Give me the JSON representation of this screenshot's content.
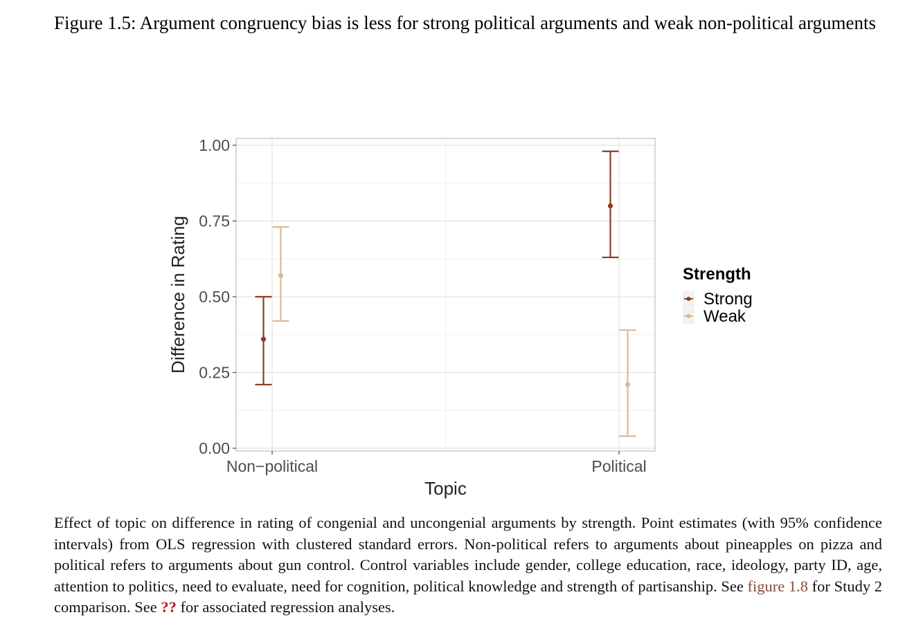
{
  "figure_title": "Figure 1.5:  Argument congruency bias is less for strong political arguments and weak non-political arguments",
  "caption": {
    "text_before_link": "Effect of topic on difference in rating of congenial and uncongenial arguments by strength. Point estimates (with 95% confidence intervals) from OLS regression with clustered standard errors. Non-political refers to arguments about pineapples on pizza and political refers to arguments about gun control. Control variables include gender, college education, race, ideology, party ID, age, attention to politics, need to evaluate, need for cognition, political knowledge and strength of partisanship. See ",
    "link_text": "figure 1.8",
    "text_middle": " for Study 2 comparison. See ",
    "ref_missing": "??",
    "text_after": " for associated regression analyses."
  },
  "chart_data": {
    "type": "scatter",
    "subtype": "point-errorbar",
    "categories": [
      "Non−political",
      "Political"
    ],
    "xlabel": "Topic",
    "ylabel": "Difference in Rating",
    "ylim": [
      0,
      1
    ],
    "yticks": [
      "0.00",
      "0.25",
      "0.50",
      "0.75",
      "1.00"
    ],
    "yticks_values": [
      0,
      0.25,
      0.5,
      0.75,
      1.0
    ],
    "grid": true,
    "legend": {
      "title": "Strength",
      "placement": "right"
    },
    "series": [
      {
        "name": "Strong",
        "color": "#8b3e22",
        "points": [
          {
            "category": "Non−political",
            "estimate": 0.36,
            "lower": 0.21,
            "upper": 0.5
          },
          {
            "category": "Political",
            "estimate": 0.8,
            "lower": 0.63,
            "upper": 0.98
          }
        ]
      },
      {
        "name": "Weak",
        "color": "#d9b993",
        "points": [
          {
            "category": "Non−political",
            "estimate": 0.57,
            "lower": 0.42,
            "upper": 0.73
          },
          {
            "category": "Political",
            "estimate": 0.21,
            "lower": 0.04,
            "upper": 0.39
          }
        ]
      }
    ]
  }
}
